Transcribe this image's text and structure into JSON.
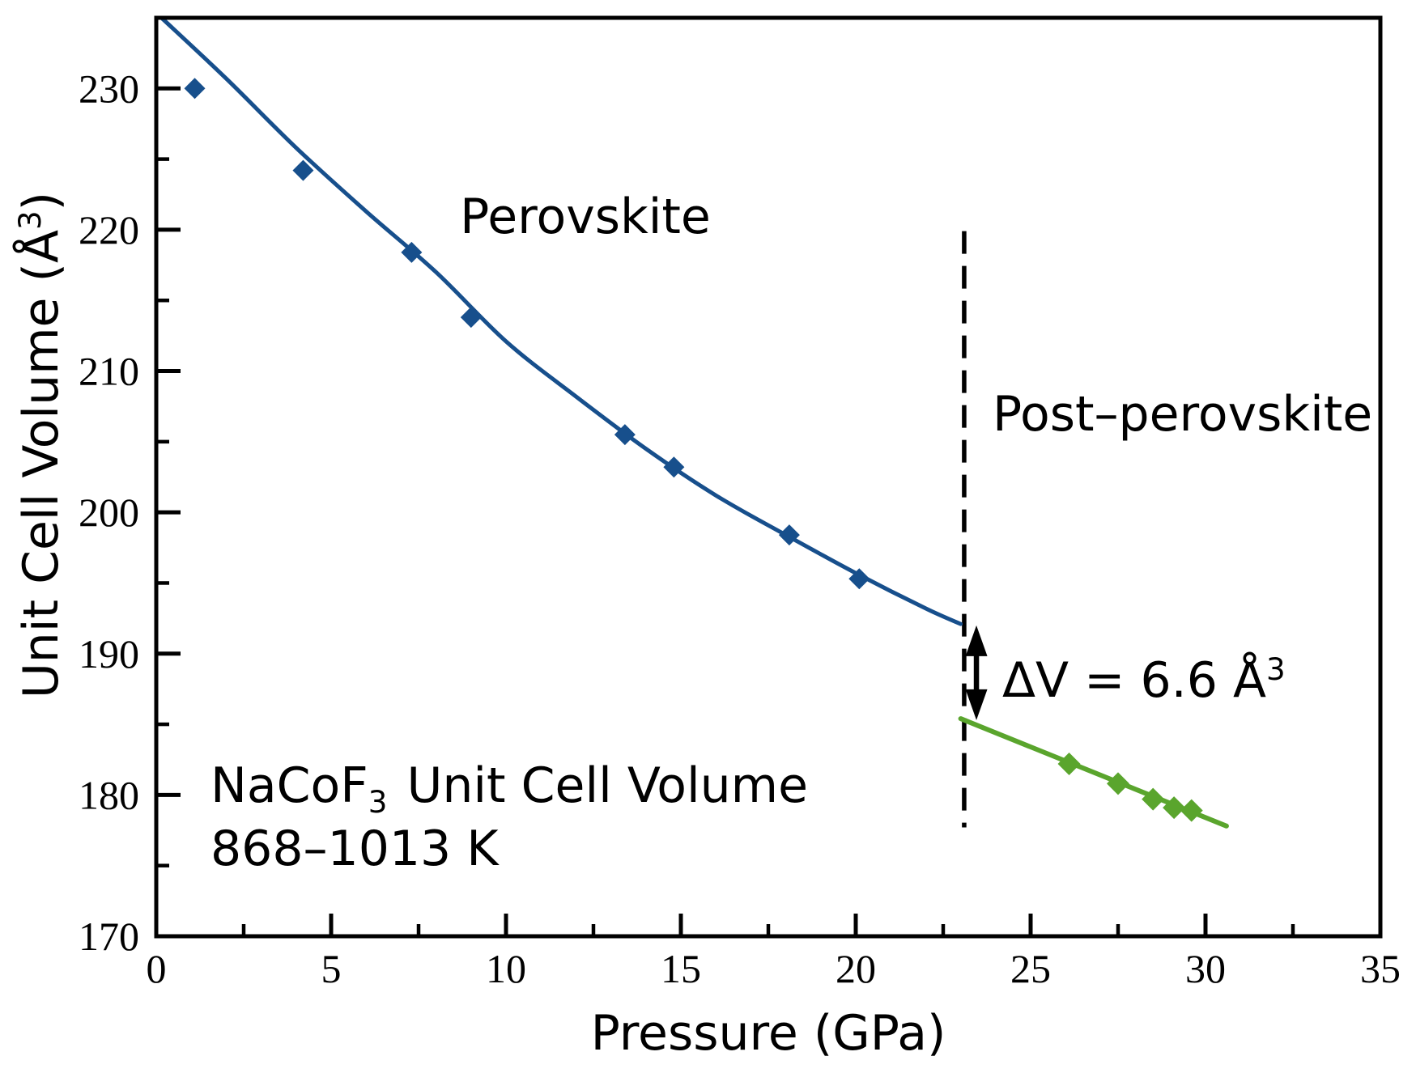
{
  "labels": {
    "perovskite": "Perovskite",
    "post_perovskite": "Post–perovskite",
    "delta_v_text": "ΔV = 6.6 Å",
    "delta_v_sup": "3",
    "sample_pre": "NaCoF",
    "sample_sub": "3",
    "sample_post": "Unit Cell Volume",
    "temperature": "868–1013 K",
    "xlabel": "Pressure (GPa)",
    "ylabel_main": "Unit Cell Volume (Å",
    "ylabel_sup": "3",
    "ylabel_close": ")"
  },
  "colors": {
    "perovskite": "#174f8c",
    "post_perovskite": "#5aa52d",
    "axis": "#000000",
    "background": "#ffffff"
  },
  "chart_data": {
    "type": "scatter",
    "title": "NaCoF3 Unit Cell Volume, 868–1013 K",
    "xlabel": "Pressure (GPa)",
    "ylabel": "Unit Cell Volume (Å³)",
    "xlim": [
      0,
      35
    ],
    "ylim": [
      170,
      235
    ],
    "grid": false,
    "legend": "none (phases labeled with in-plot annotations)",
    "x_major_ticks": [
      0,
      5,
      10,
      15,
      20,
      25,
      30,
      35
    ],
    "x_tick_labels": [
      "0",
      "5",
      "10",
      "15",
      "20",
      "25",
      "30",
      "35"
    ],
    "x_minor_ticks": [
      2.5,
      7.5,
      12.5,
      17.5,
      22.5,
      27.5,
      32.5
    ],
    "y_major_ticks": [
      170,
      180,
      190,
      200,
      210,
      220,
      230
    ],
    "y_tick_labels": [
      "170",
      "180",
      "190",
      "200",
      "210",
      "220",
      "230"
    ],
    "y_minor_ticks": [
      175,
      185,
      195,
      205,
      215,
      225
    ],
    "series": [
      {
        "name": "Perovskite",
        "color": "#174f8c",
        "marker": "diamond",
        "points": [
          [
            1.1,
            230.0
          ],
          [
            4.2,
            224.2
          ],
          [
            7.3,
            218.4
          ],
          [
            9.0,
            213.8
          ],
          [
            13.4,
            205.5
          ],
          [
            14.8,
            203.2
          ],
          [
            18.1,
            198.4
          ],
          [
            20.1,
            195.3
          ]
        ],
        "fit": {
          "kind": "curve",
          "points": [
            [
              0.15,
              235.0
            ],
            [
              2.0,
              230.7
            ],
            [
              4.0,
              225.8
            ],
            [
              6.0,
              221.3
            ],
            [
              8.0,
              217.0
            ],
            [
              10.0,
              212.1
            ],
            [
              12.0,
              208.2
            ],
            [
              14.0,
              204.5
            ],
            [
              16.0,
              201.2
            ],
            [
              18.0,
              198.4
            ],
            [
              20.0,
              195.7
            ],
            [
              22.0,
              193.2
            ],
            [
              23.0,
              192.1
            ]
          ]
        }
      },
      {
        "name": "Post-perovskite",
        "color": "#5aa52d",
        "marker": "diamond",
        "points": [
          [
            26.1,
            182.2
          ],
          [
            27.5,
            180.8
          ],
          [
            28.5,
            179.7
          ],
          [
            29.1,
            179.1
          ],
          [
            29.6,
            178.9
          ]
        ],
        "fit": {
          "kind": "line",
          "points": [
            [
              23.0,
              185.4
            ],
            [
              30.6,
              177.8
            ]
          ]
        }
      }
    ],
    "phase_boundary": {
      "x": 23.1,
      "v_top": 219.9,
      "v_bottom": 177.7,
      "style": "dashed"
    },
    "volume_change_arrow": {
      "x": 23.45,
      "v_top": 192.0,
      "v_bottom": 185.3,
      "label": "ΔV = 6.6 Å³"
    }
  }
}
